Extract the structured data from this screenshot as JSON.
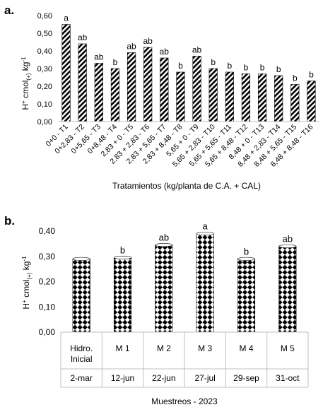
{
  "chart_data": [
    {
      "panel_label": "a.",
      "type": "bar",
      "title": "",
      "xlabel": "Tratamientos (kg/planta de C.A. + CAL)",
      "ylabel": "H+ cmol(+) kg-1",
      "ylabel_parts": {
        "base": "H",
        "sup1": "+",
        "mid": " cmol",
        "sub": "(+)",
        "mid2": " kg",
        "sup2": "-1"
      },
      "ylim": [
        0,
        0.6
      ],
      "yticks": [
        "0,00",
        "0,10",
        "0,20",
        "0,30",
        "0,40",
        "0,50",
        "0,60"
      ],
      "grid": false,
      "categories": [
        "0+0 - T1",
        "0+2,83 - T2",
        "0+5,65 - T3",
        "0+8,48 - T4",
        "2,83 + 0 - T5",
        "2,83 + 2,83 - T6",
        "2,83 + 5,65 - T7",
        "2,83 + 8,48 - T8",
        "5,65 + 0 - T9",
        "5,65 + 2,83 - T10",
        "5,65 + 5,65 - T11",
        "5,65 + 8,48 - T12",
        "8,48 + 0 - T13",
        "8,48 + 2,83 - T14",
        "8,48 + 5,65 - T15",
        "8,48 + 8,48 - T16"
      ],
      "values": [
        0.55,
        0.44,
        0.33,
        0.3,
        0.39,
        0.42,
        0.36,
        0.28,
        0.37,
        0.3,
        0.28,
        0.27,
        0.27,
        0.26,
        0.21,
        0.23
      ],
      "letters": [
        "a",
        "ab",
        "ab",
        "b",
        "ab",
        "ab",
        "ab",
        "b",
        "ab",
        "b",
        "b",
        "b",
        "b",
        "b",
        "b",
        "b"
      ],
      "pattern": "diagonal-stripes"
    },
    {
      "panel_label": "b.",
      "type": "bar",
      "title": "",
      "xlabel": "Muestreos - 2023",
      "ylabel": "H+ cmol(+) kg-1",
      "ylabel_parts": {
        "base": "H",
        "sup1": "+",
        "mid": " cmol",
        "sub": "(+)",
        "mid2": " kg",
        "sup2": "-1"
      },
      "ylim": [
        0,
        0.4
      ],
      "yticks": [
        "0,00",
        "0,10",
        "0,20",
        "0,30",
        "0,40"
      ],
      "grid": false,
      "categories": [
        {
          "line1": "Hidro.",
          "line2": "Inicial",
          "date": "2-mar"
        },
        {
          "line1": "M 1",
          "line2": "",
          "date": "12-jun"
        },
        {
          "line1": "M 2",
          "line2": "",
          "date": "22-jun"
        },
        {
          "line1": "M 3",
          "line2": "",
          "date": "27-jul"
        },
        {
          "line1": "M 4",
          "line2": "",
          "date": "29-sep"
        },
        {
          "line1": "M 5",
          "line2": "",
          "date": "31-oct"
        }
      ],
      "values": [
        0.29,
        0.295,
        0.345,
        0.39,
        0.29,
        0.34
      ],
      "letters": [
        "",
        "b",
        "ab",
        "a",
        "b",
        "ab"
      ],
      "pattern": "diamond-checker"
    }
  ]
}
